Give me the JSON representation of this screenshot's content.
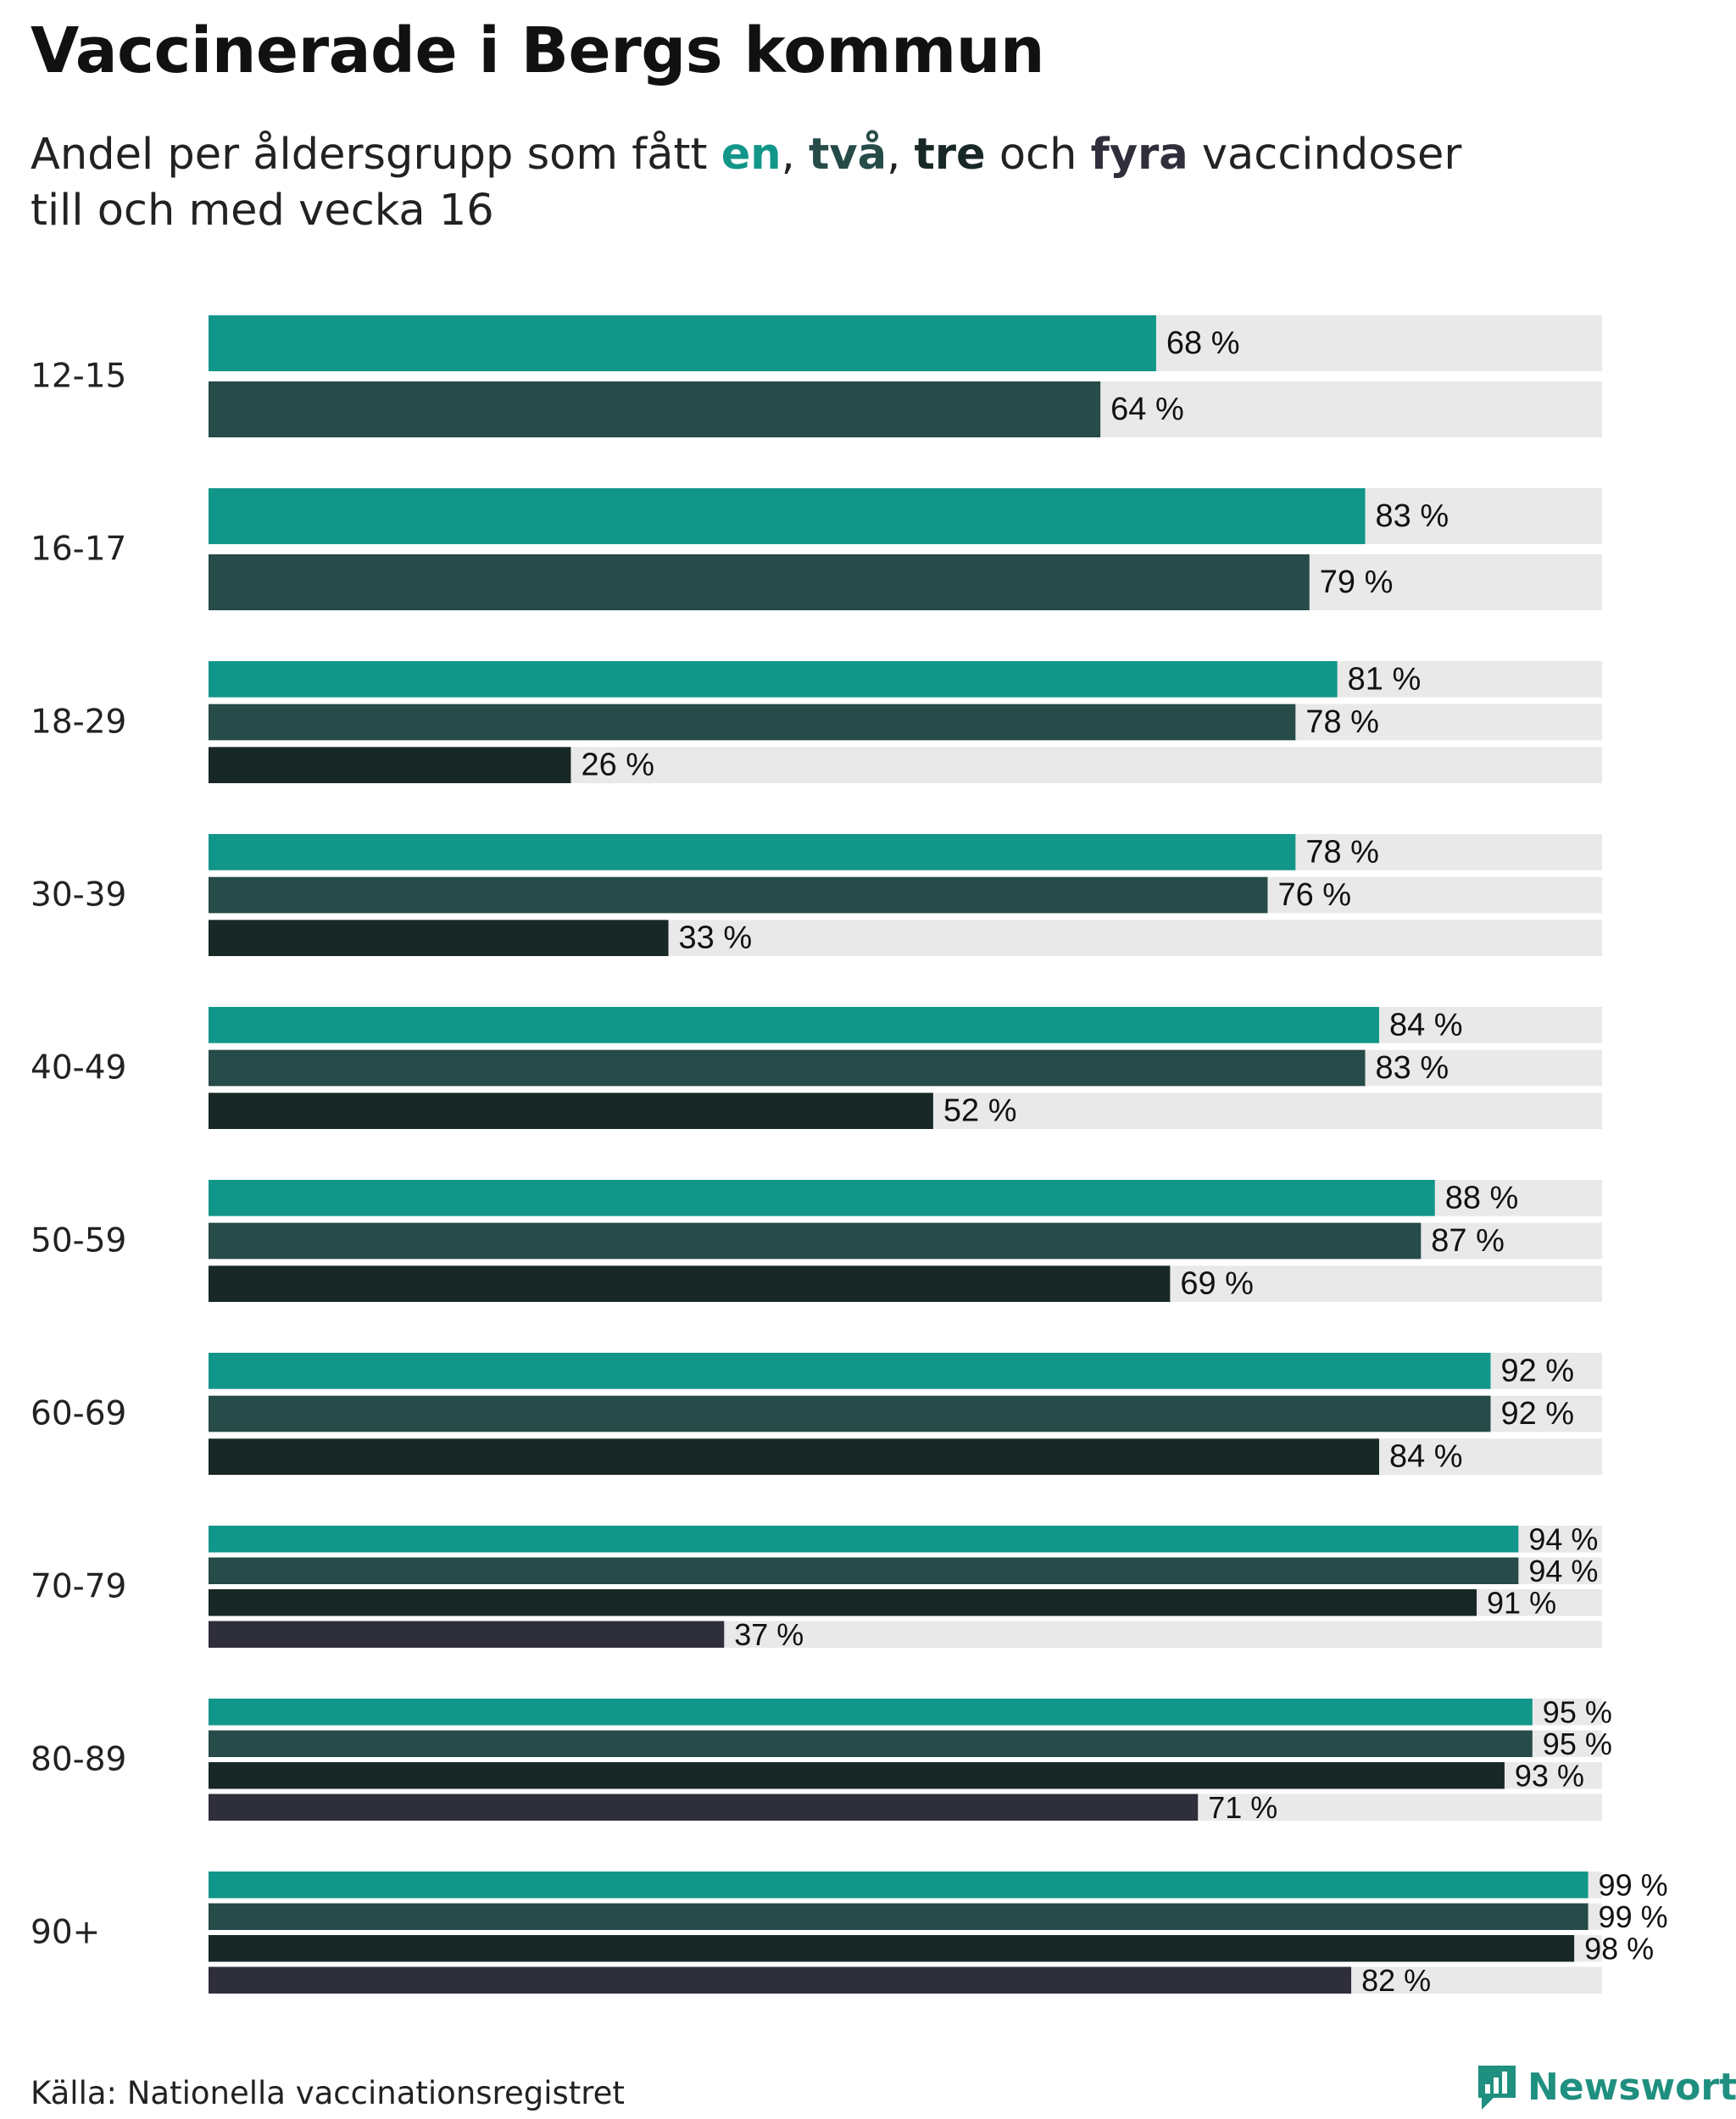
{
  "header": {
    "title": "Vaccinerade i Bergs kommun",
    "subtitle_part1": "Andel per åldersgrupp som fått ",
    "kw_en": "en",
    "sep1": ", ",
    "kw_tva": "två",
    "sep2": ", ",
    "kw_tre": "tre",
    "sep3": " och ",
    "kw_fyra": "fyra",
    "subtitle_part2": " vaccindoser",
    "subtitle_line2": "till och med vecka 16"
  },
  "footer": {
    "source": "Källa: Nationella vaccinationsregistret",
    "brand": "Newsworthy"
  },
  "colors": {
    "en": "#12968a",
    "tva": "#264b48",
    "tre": "#182826",
    "fyra": "#2f2e3b",
    "track": "#e9e9e9"
  },
  "chart_data": {
    "type": "bar",
    "orientation": "horizontal",
    "xlim": [
      0,
      100
    ],
    "value_suffix": " %",
    "series": [
      {
        "key": "en",
        "name": "en"
      },
      {
        "key": "tva",
        "name": "två"
      },
      {
        "key": "tre",
        "name": "tre"
      },
      {
        "key": "fyra",
        "name": "fyra"
      }
    ],
    "groups": [
      {
        "label": "12-15",
        "values": [
          68,
          64
        ]
      },
      {
        "label": "16-17",
        "values": [
          83,
          79
        ]
      },
      {
        "label": "18-29",
        "values": [
          81,
          78,
          26
        ]
      },
      {
        "label": "30-39",
        "values": [
          78,
          76,
          33
        ]
      },
      {
        "label": "40-49",
        "values": [
          84,
          83,
          52
        ]
      },
      {
        "label": "50-59",
        "values": [
          88,
          87,
          69
        ]
      },
      {
        "label": "60-69",
        "values": [
          92,
          92,
          84
        ]
      },
      {
        "label": "70-79",
        "values": [
          94,
          94,
          91,
          37
        ]
      },
      {
        "label": "80-89",
        "values": [
          95,
          95,
          93,
          71
        ]
      },
      {
        "label": "90+",
        "values": [
          99,
          99,
          98,
          82
        ]
      }
    ]
  }
}
